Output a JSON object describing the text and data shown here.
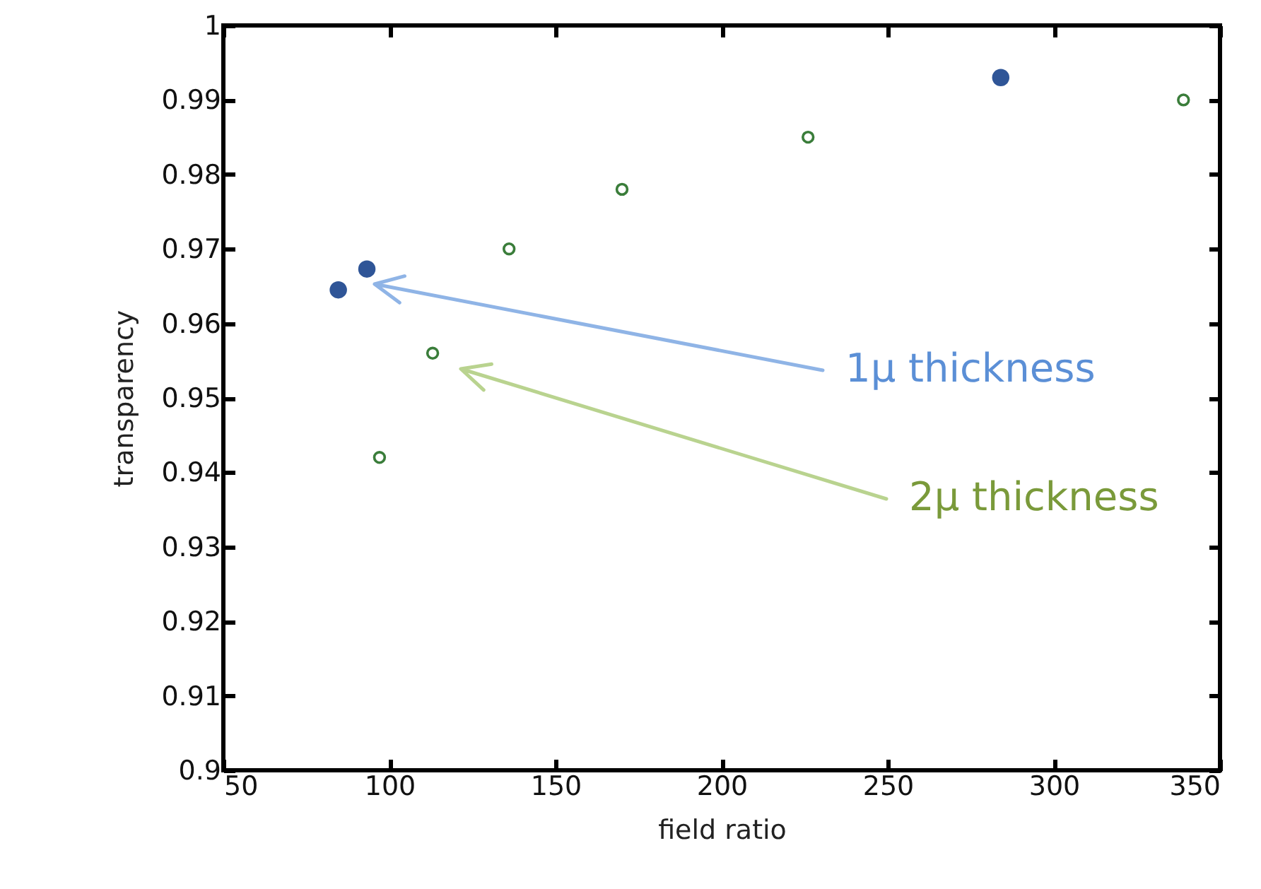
{
  "chart_data": {
    "type": "scatter",
    "xlabel": "field ratio",
    "ylabel": "transparency",
    "xlim": [
      50,
      350
    ],
    "ylim": [
      0.9,
      1
    ],
    "xticks": [
      50,
      100,
      150,
      200,
      250,
      300,
      350
    ],
    "yticks": [
      0.9,
      0.91,
      0.92,
      0.93,
      0.94,
      0.95,
      0.96,
      0.97,
      0.98,
      0.99,
      1
    ],
    "grid": false,
    "marker": "circle",
    "series": [
      {
        "color": "#2f5597",
        "x": [
          84.6,
          93.2,
          284
        ],
        "values": [
          0.9645,
          0.9673,
          0.993
        ]
      },
      {
        "color": "#3a7d3a",
        "x": [
          97,
          113,
          136,
          170,
          226,
          339
        ],
        "values": [
          0.942,
          0.956,
          0.97,
          0.978,
          0.985,
          0.99
        ]
      }
    ],
    "annotations": [
      "1μ thickness",
      "2μ thickness"
    ]
  }
}
